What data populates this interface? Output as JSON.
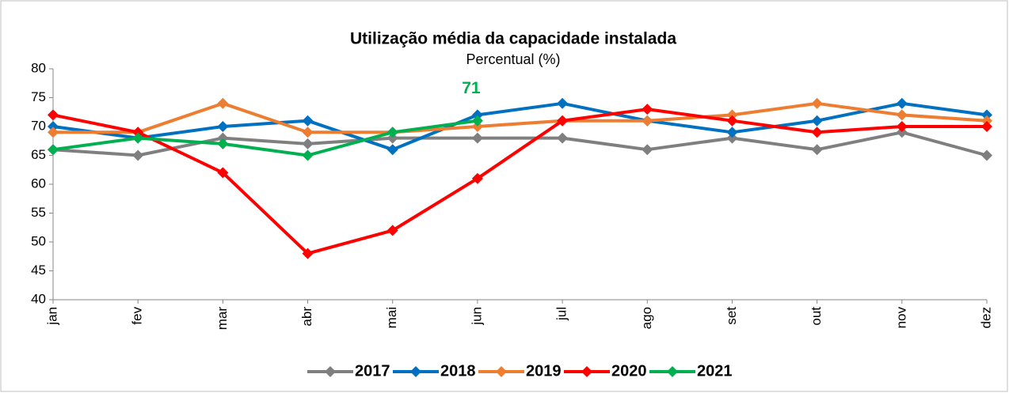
{
  "chart_data": {
    "type": "line",
    "title": "Utilização média da capacidade instalada",
    "subtitle": "Percentual (%)",
    "categories": [
      "jan",
      "fev",
      "mar",
      "abr",
      "mai",
      "jun",
      "jul",
      "ago",
      "set",
      "out",
      "nov",
      "dez"
    ],
    "series": [
      {
        "name": "2017",
        "color": "#7f7f7f",
        "values": [
          66,
          65,
          68,
          67,
          68,
          68,
          68,
          66,
          68,
          66,
          69,
          65
        ]
      },
      {
        "name": "2018",
        "color": "#0070c0",
        "values": [
          70,
          68,
          70,
          71,
          66,
          72,
          74,
          71,
          69,
          71,
          74,
          72
        ]
      },
      {
        "name": "2019",
        "color": "#ed7d31",
        "values": [
          69,
          69,
          74,
          69,
          69,
          70,
          71,
          71,
          72,
          74,
          72,
          71
        ]
      },
      {
        "name": "2020",
        "color": "#ff0000",
        "values": [
          72,
          69,
          62,
          48,
          52,
          61,
          71,
          73,
          71,
          69,
          70,
          70
        ]
      },
      {
        "name": "2021",
        "color": "#00b050",
        "values": [
          66,
          68,
          67,
          65,
          69,
          71,
          null,
          null,
          null,
          null,
          null,
          null
        ],
        "value_labels": [
          null,
          null,
          null,
          null,
          null,
          "71",
          null,
          null,
          null,
          null,
          null,
          null
        ]
      }
    ],
    "ylim": [
      40,
      80
    ],
    "yticks": [
      40,
      45,
      50,
      55,
      60,
      65,
      70,
      75,
      80
    ],
    "legend": "bottom",
    "grid": false
  }
}
